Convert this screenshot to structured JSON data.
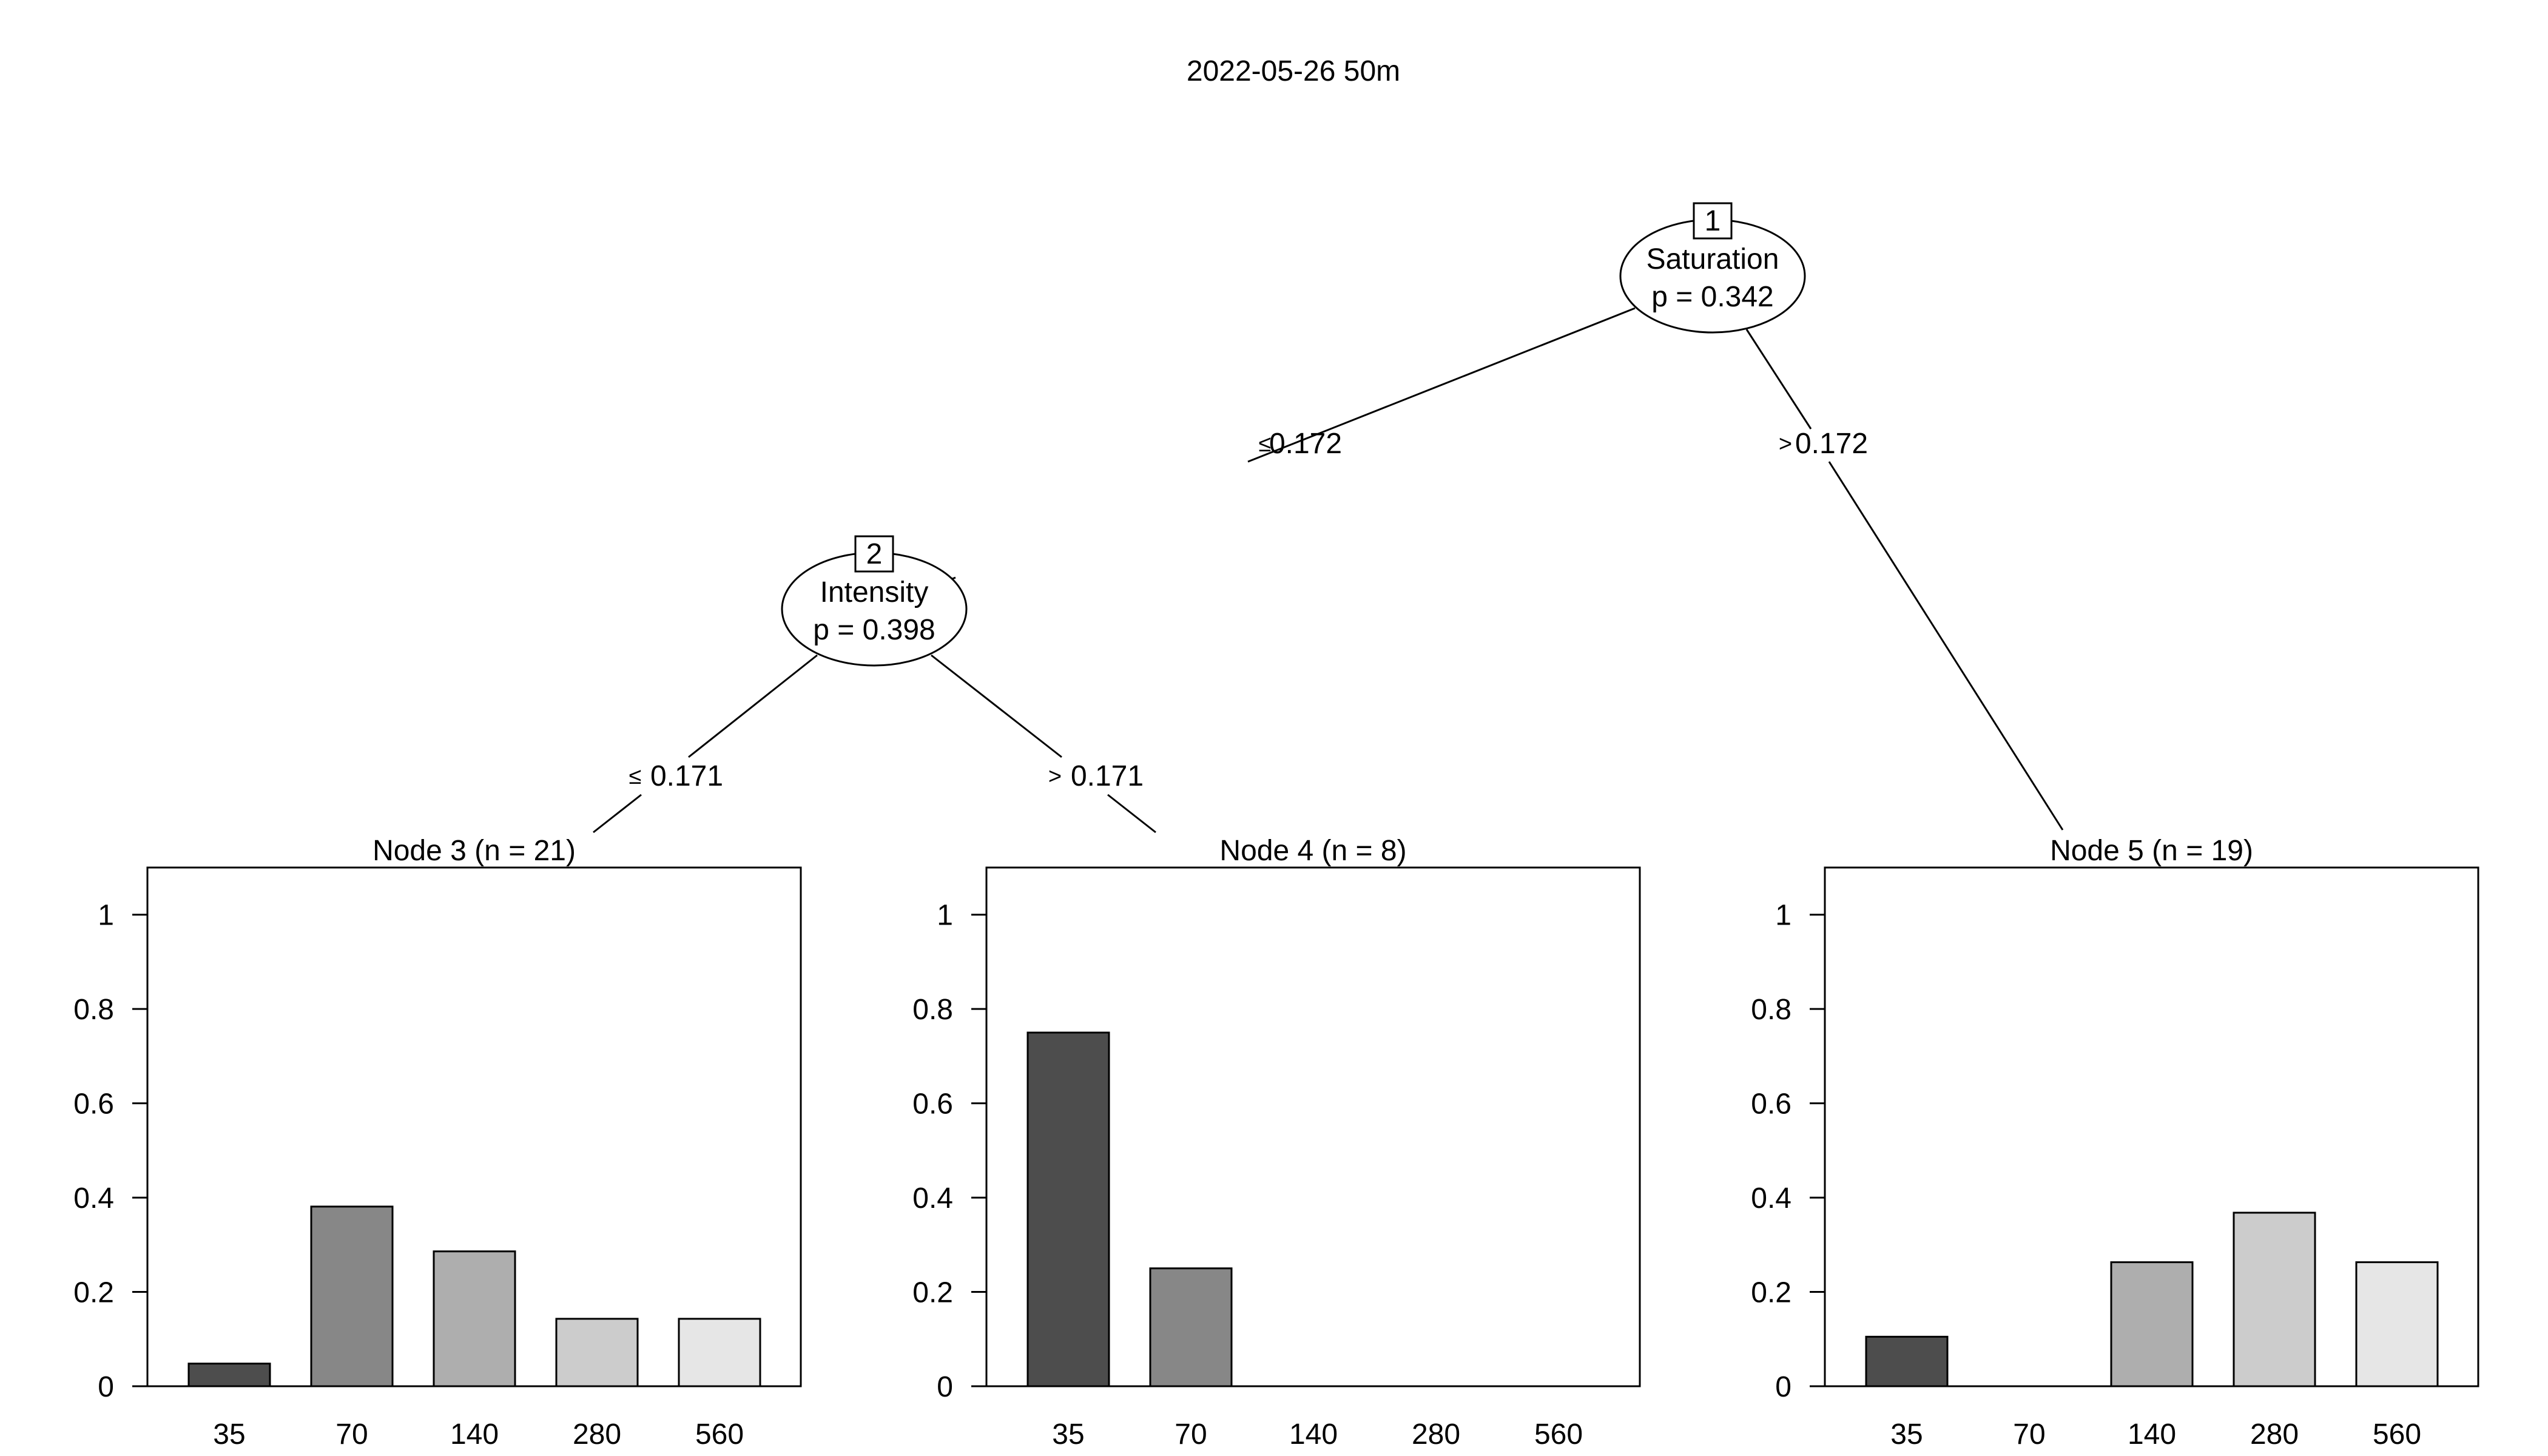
{
  "title": "2022-05-26 50m",
  "inner_nodes": [
    {
      "id": "1",
      "variable": "Saturation",
      "pvalue": "p = 0.342"
    },
    {
      "id": "2",
      "variable": "Intensity",
      "pvalue": "p = 0.398"
    }
  ],
  "edge_labels": [
    {
      "from": "1",
      "to": "2",
      "op": "≤",
      "value": "0.172"
    },
    {
      "from": "1",
      "to": "5",
      "op": ">",
      "value": "0.172"
    },
    {
      "from": "2",
      "to": "3",
      "op": "≤",
      "value": "0.171"
    },
    {
      "from": "2",
      "to": "4",
      "op": ">",
      "value": "0.171"
    }
  ],
  "chart_data": [
    {
      "type": "bar",
      "title": "Node 3 (n = 21)",
      "categories": [
        "35",
        "70",
        "140",
        "280",
        "560"
      ],
      "values": [
        0.048,
        0.381,
        0.286,
        0.143,
        0.143
      ],
      "ylim": [
        0,
        1.1
      ],
      "yticks": [
        "0",
        "0.2",
        "0.4",
        "0.6",
        "0.8",
        "1"
      ],
      "colors": [
        "#4d4d4d",
        "#878787",
        "#aeaeae",
        "#cccccc",
        "#e6e6e6"
      ]
    },
    {
      "type": "bar",
      "title": "Node 4 (n = 8)",
      "categories": [
        "35",
        "70",
        "140",
        "280",
        "560"
      ],
      "values": [
        0.75,
        0.25,
        0,
        0,
        0
      ],
      "ylim": [
        0,
        1.1
      ],
      "yticks": [
        "0",
        "0.2",
        "0.4",
        "0.6",
        "0.8",
        "1"
      ],
      "colors": [
        "#4d4d4d",
        "#878787",
        "#aeaeae",
        "#cccccc",
        "#e6e6e6"
      ]
    },
    {
      "type": "bar",
      "title": "Node 5 (n = 19)",
      "categories": [
        "35",
        "70",
        "140",
        "280",
        "560"
      ],
      "values": [
        0.105,
        0,
        0.263,
        0.368,
        0.263
      ],
      "ylim": [
        0,
        1.1
      ],
      "yticks": [
        "0",
        "0.2",
        "0.4",
        "0.6",
        "0.8",
        "1"
      ],
      "colors": [
        "#4d4d4d",
        "#878787",
        "#aeaeae",
        "#cccccc",
        "#e6e6e6"
      ]
    }
  ]
}
